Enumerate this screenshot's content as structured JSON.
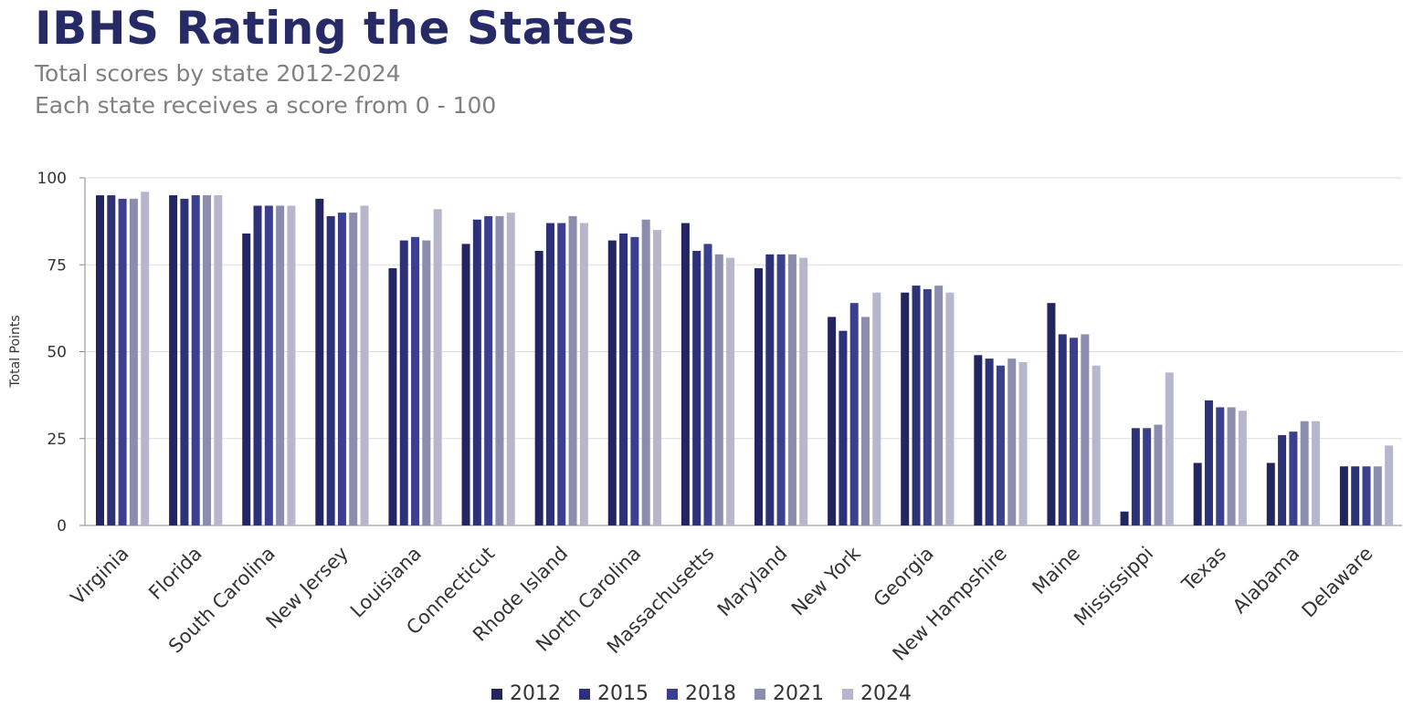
{
  "chart_data": {
    "type": "bar",
    "title": "IBHS Rating the States",
    "subtitle_lines": [
      "Total scores by state 2012-2024",
      "Each state receives a score from 0 - 100"
    ],
    "ylabel": "Total Points",
    "xlabel": "",
    "ylim": [
      0,
      100
    ],
    "yticks": [
      0,
      25,
      50,
      75,
      100
    ],
    "grid": true,
    "legend_position": "bottom",
    "categories": [
      "Virginia",
      "Florida",
      "South Carolina",
      "New Jersey",
      "Louisiana",
      "Connecticut",
      "Rhode Island",
      "North Carolina",
      "Massachusetts",
      "Maryland",
      "New York",
      "Georgia",
      "New Hampshire",
      "Maine",
      "Mississippi",
      "Texas",
      "Alabama",
      "Delaware"
    ],
    "series": [
      {
        "name": "2012",
        "color": "#23255e",
        "values": [
          95,
          95,
          84,
          94,
          74,
          81,
          79,
          82,
          87,
          74,
          60,
          67,
          49,
          64,
          4,
          18,
          18,
          17
        ]
      },
      {
        "name": "2015",
        "color": "#2d3178",
        "values": [
          95,
          94,
          92,
          89,
          82,
          88,
          87,
          84,
          79,
          78,
          56,
          69,
          48,
          55,
          28,
          36,
          26,
          17
        ]
      },
      {
        "name": "2018",
        "color": "#3a3f8f",
        "values": [
          94,
          95,
          92,
          90,
          83,
          89,
          87,
          83,
          81,
          78,
          64,
          68,
          46,
          54,
          28,
          34,
          27,
          17
        ]
      },
      {
        "name": "2021",
        "color": "#8b8dae",
        "values": [
          94,
          95,
          92,
          90,
          82,
          89,
          89,
          88,
          78,
          78,
          60,
          69,
          48,
          55,
          29,
          34,
          30,
          17
        ]
      },
      {
        "name": "2024",
        "color": "#b6b7cc",
        "values": [
          96,
          95,
          92,
          92,
          91,
          90,
          87,
          85,
          77,
          77,
          67,
          67,
          47,
          46,
          44,
          33,
          30,
          23
        ]
      }
    ]
  }
}
